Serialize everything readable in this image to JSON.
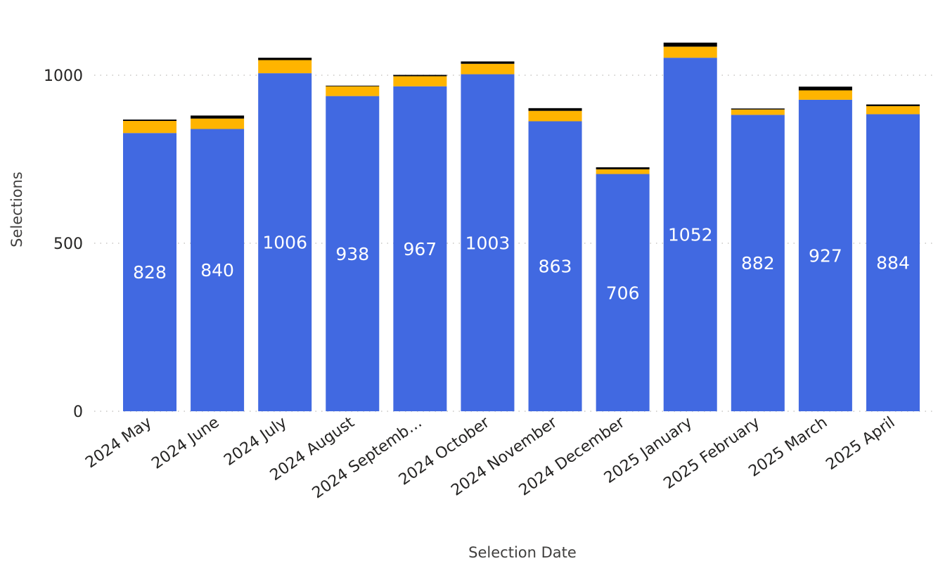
{
  "chart_data": {
    "type": "bar",
    "stacked": true,
    "xlabel": "Selection Date",
    "ylabel": "Selections",
    "ylim": [
      0,
      1100
    ],
    "yticks": [
      0,
      500,
      1000
    ],
    "ytick_labels": [
      "0",
      "500",
      "1000"
    ],
    "grid": "horizontal dotted",
    "categories": [
      "2024 May",
      "2024 June",
      "2024 July",
      "2024 August",
      "2024 Septemb…",
      "2024 October",
      "2024 November",
      "2024 December",
      "2025 January",
      "2025 February",
      "2025 March",
      "2025 April"
    ],
    "series": [
      {
        "values": [
          828,
          840,
          1006,
          938,
          967,
          1003,
          863,
          706,
          1052,
          882,
          927,
          884
        ],
        "color": "#4169e1",
        "show_data_labels": true
      },
      {
        "values": [
          36,
          31,
          39,
          29,
          30,
          31,
          31,
          14,
          33,
          16,
          28,
          24
        ],
        "color": "#ffb400"
      },
      {
        "values": [
          4,
          9,
          7,
          2,
          4,
          7,
          8,
          6,
          12,
          3,
          11,
          5
        ],
        "color": "#000000"
      }
    ]
  }
}
